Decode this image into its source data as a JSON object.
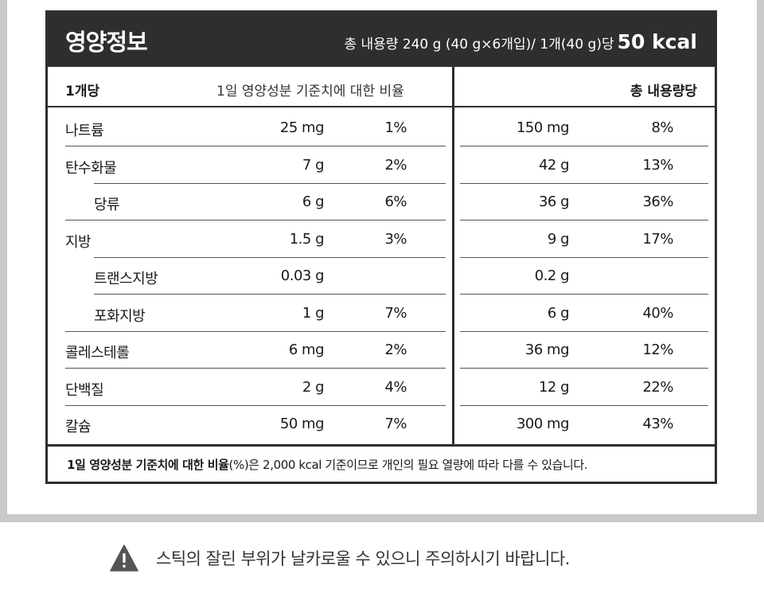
{
  "header": {
    "title": "영양정보",
    "serving_info": "총 내용량 240 g (40 g×6개입)/ 1개(40 g)당",
    "kcal": "50 kcal"
  },
  "columns": {
    "per_unit": "1개당",
    "daily_ratio": "1일 영양성분 기준치에 대한 비율",
    "per_total": "총 내용량당"
  },
  "rows": [
    {
      "name": "나트륨",
      "indent": false,
      "amount": "25 mg",
      "pct": "1%",
      "total_amount": "150 mg",
      "total_pct": "8%"
    },
    {
      "name": "탄수화물",
      "indent": false,
      "amount": "7 g",
      "pct": "2%",
      "total_amount": "42 g",
      "total_pct": "13%"
    },
    {
      "name": "당류",
      "indent": true,
      "amount": "6 g",
      "pct": "6%",
      "total_amount": "36 g",
      "total_pct": "36%"
    },
    {
      "name": "지방",
      "indent": false,
      "amount": "1.5 g",
      "pct": "3%",
      "total_amount": "9 g",
      "total_pct": "17%"
    },
    {
      "name": "트랜스지방",
      "indent": true,
      "amount": "0.03 g",
      "pct": "",
      "total_amount": "0.2 g",
      "total_pct": ""
    },
    {
      "name": "포화지방",
      "indent": true,
      "amount": "1 g",
      "pct": "7%",
      "total_amount": "6 g",
      "total_pct": "40%"
    },
    {
      "name": "콜레스테롤",
      "indent": false,
      "amount": "6 mg",
      "pct": "2%",
      "total_amount": "36 mg",
      "total_pct": "12%"
    },
    {
      "name": "단백질",
      "indent": false,
      "amount": "2 g",
      "pct": "4%",
      "total_amount": "12 g",
      "total_pct": "22%"
    },
    {
      "name": "칼슘",
      "indent": false,
      "amount": "50 mg",
      "pct": "7%",
      "total_amount": "300 mg",
      "total_pct": "43%"
    }
  ],
  "footnote": {
    "bold": "1일 영양성분 기준치에 대한 비율",
    "rest": "(%)은 2,000 kcal 기준이므로 개인의 필요 열량에 따라 다를 수 있습니다."
  },
  "warning": {
    "icon": "warning-triangle-icon",
    "text": "스틱의 잘린 부위가 날카로울 수 있으니 주의하시기 바랍니다."
  }
}
